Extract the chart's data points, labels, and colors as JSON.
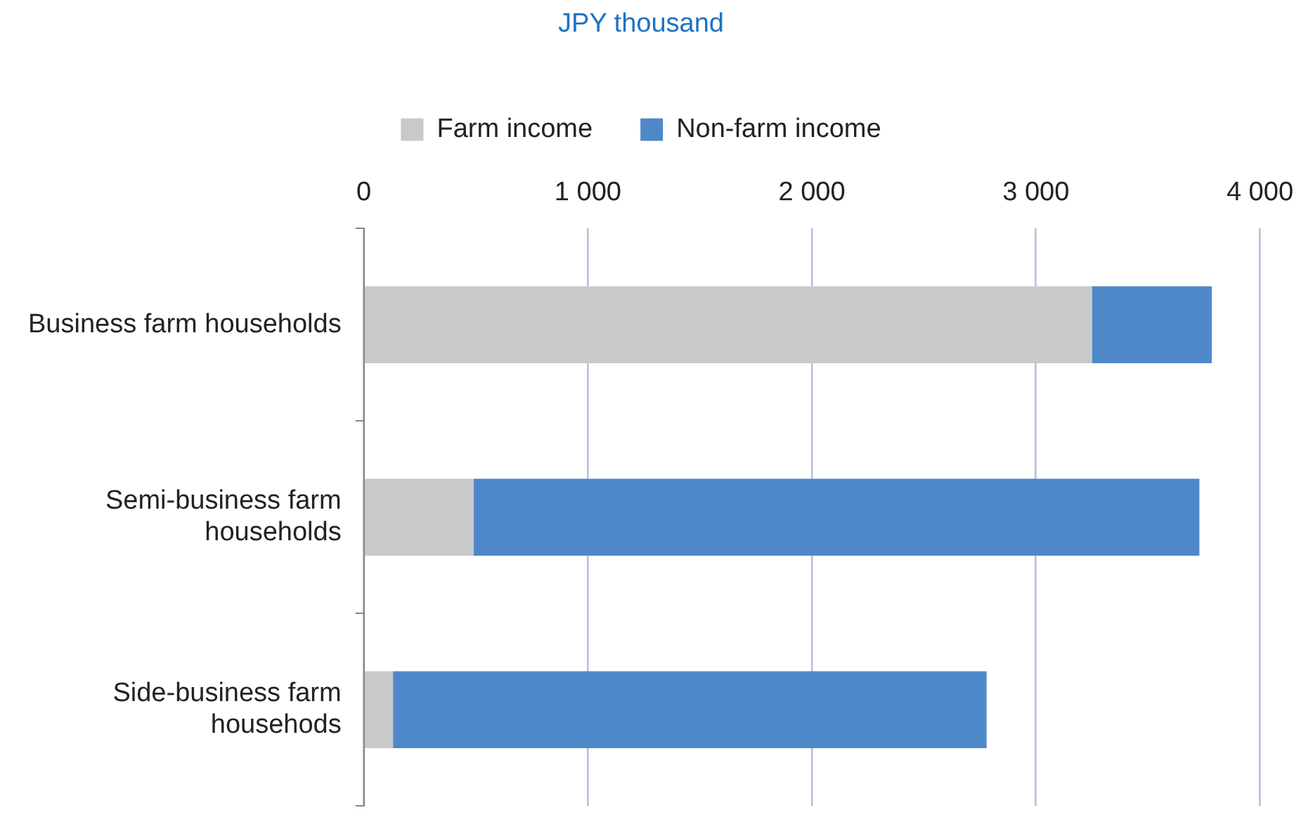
{
  "chart_data": {
    "type": "bar",
    "orientation": "horizontal",
    "stacked": true,
    "title": "JPY thousand",
    "categories": [
      "Business farm households",
      "Semi-business farm households",
      "Side-business farm househods"
    ],
    "series": [
      {
        "name": "Farm income",
        "color": "#c8c9cb",
        "values": [
          3250,
          490,
          130
        ]
      },
      {
        "name": "Non-farm income",
        "color": "#4f88c8",
        "values": [
          535,
          3240,
          2650
        ]
      }
    ],
    "xlim": [
      0,
      4000
    ],
    "xticks": [
      {
        "value": 0,
        "label": "0"
      },
      {
        "value": 1000,
        "label": "1 000"
      },
      {
        "value": 2000,
        "label": "2 000"
      },
      {
        "value": 3000,
        "label": "3 000"
      },
      {
        "value": 4000,
        "label": "4 000"
      }
    ],
    "grid": "x",
    "legend": "top"
  }
}
